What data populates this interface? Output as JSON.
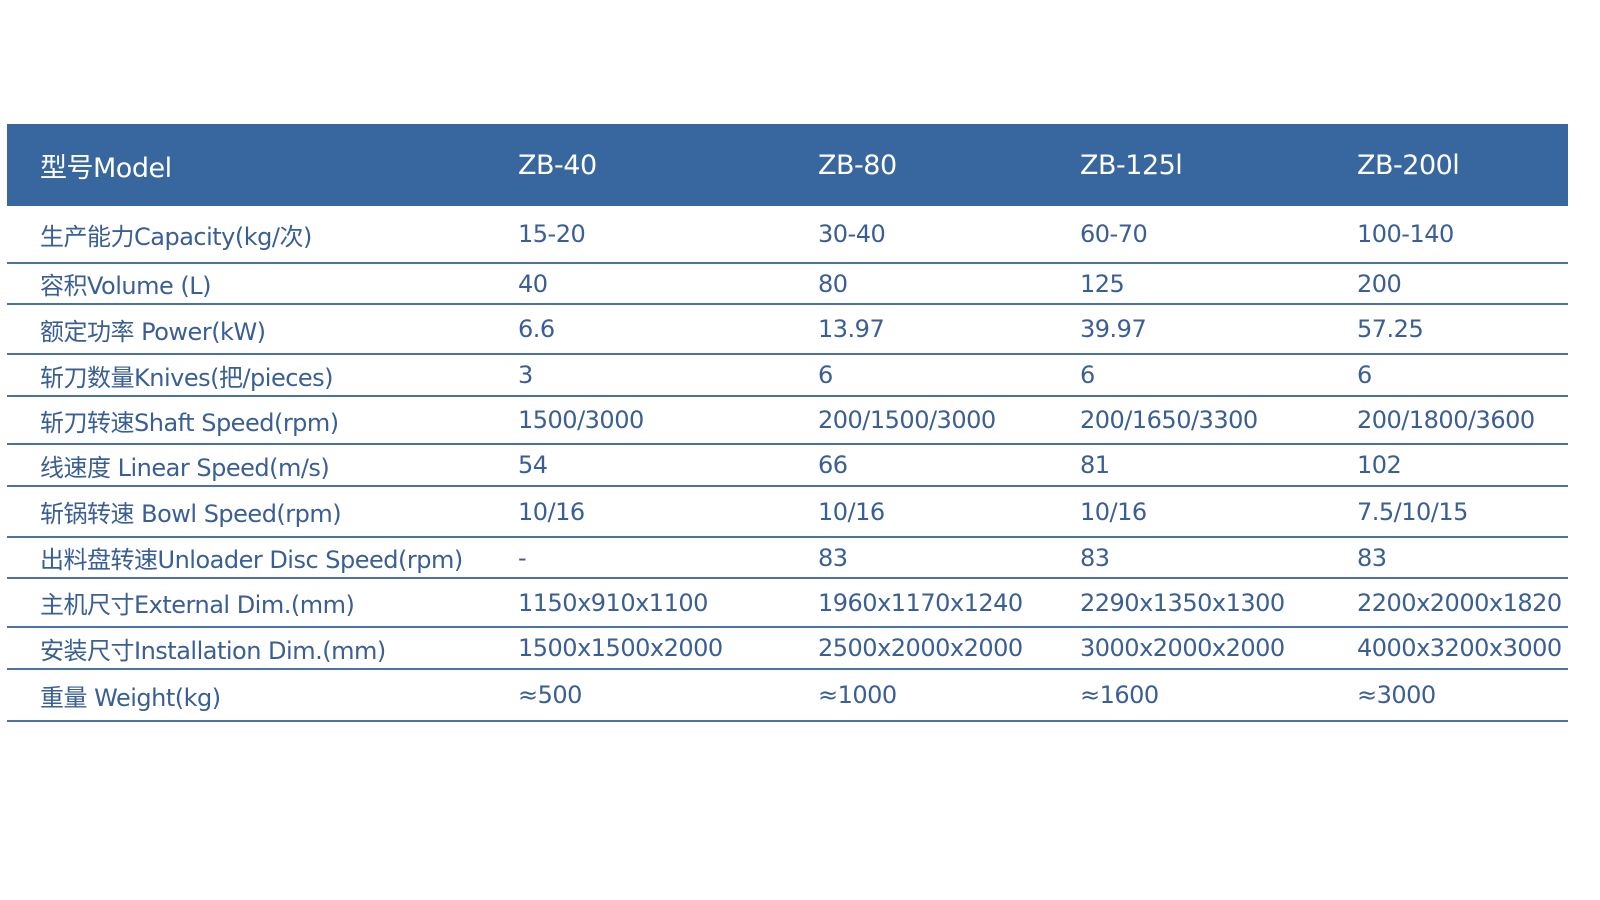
{
  "header": [
    "型号Model",
    "ZB-40",
    "ZB-80",
    "ZB-125l",
    "ZB-200l"
  ],
  "rows": [
    [
      "生产能力Capacity(kg/次)",
      "15-20",
      "30-40",
      "60-70",
      "100-140"
    ],
    [
      "容积Volume (L)",
      "40",
      "80",
      "125",
      "200"
    ],
    [
      "额定功率 Power(kW)",
      "6.6",
      "13.97",
      "39.97",
      "57.25"
    ],
    [
      "斩刀数量Knives(把/pieces)",
      "3",
      "6",
      "6",
      "6"
    ],
    [
      "斩刀转速Shaft Speed(rpm)",
      "1500/3000",
      "200/1500/3000",
      "200/1650/3300",
      "200/1800/3600"
    ],
    [
      "线速度 Linear Speed(m/s)",
      "54",
      "66",
      "81",
      "102"
    ],
    [
      "斩锅转速 Bowl Speed(rpm)",
      "10/16",
      "10/16",
      "10/16",
      "7.5/10/15"
    ],
    [
      "出料盘转速Unloader Disc Speed(rpm)",
      "-",
      "83",
      "83",
      "83"
    ],
    [
      "主机尺寸External Dim.(mm)",
      "1150x910x1100",
      "1960x1170x1240",
      "2290x1350x1300",
      "2200x2000x1820"
    ],
    [
      "安装尺寸Installation Dim.(mm)",
      "1500x1500x2000",
      "2500x2000x2000",
      "3000x2000x2000",
      "4000x3200x3000"
    ],
    [
      "重量 Weight(kg)",
      "≈500",
      "≈1000",
      "≈1600",
      "≈3000"
    ]
  ],
  "colors": {
    "header_bg": "#38669e",
    "text": "#3a5f95",
    "rule": "#4a72a8"
  }
}
